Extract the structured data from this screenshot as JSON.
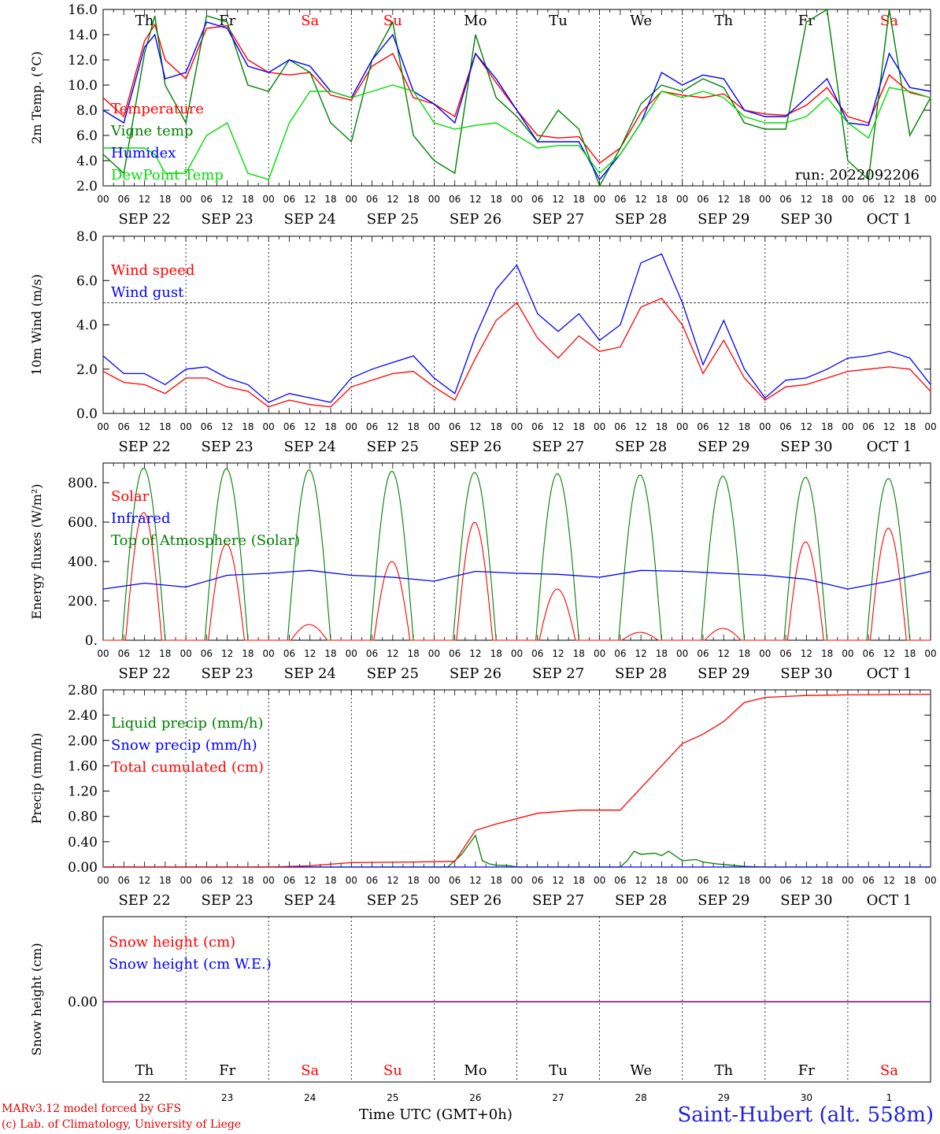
{
  "chart_data": [
    {
      "type": "line",
      "ylabel": "2m Temp. (°C)",
      "ylim": [
        2.0,
        16.0
      ],
      "yticks": [
        "2.0",
        "4.0",
        "6.0",
        "8.0",
        "10.0",
        "12.0",
        "14.0",
        "16.0"
      ],
      "annotation": "run: 2022092206",
      "x_hours": [
        0,
        6,
        12,
        15,
        18,
        24,
        30,
        36,
        42,
        48,
        54,
        60,
        66,
        72,
        78,
        84,
        90,
        96,
        102,
        108,
        114,
        120,
        126,
        132,
        138,
        144,
        150,
        156,
        162,
        168,
        174,
        180,
        186,
        192,
        198,
        204,
        210,
        216,
        222,
        228,
        234,
        240
      ],
      "series": [
        {
          "name": "Temperature",
          "color": "#ff0000",
          "values": [
            9.0,
            7.5,
            13.5,
            14.8,
            12.0,
            10.5,
            14.5,
            14.7,
            12.0,
            11.0,
            10.8,
            11.0,
            9.2,
            8.8,
            11.5,
            12.5,
            9.0,
            8.5,
            7.5,
            12.5,
            10.2,
            8.0,
            6.0,
            5.8,
            5.9,
            3.8,
            5.0,
            7.8,
            9.5,
            9.2,
            9.0,
            9.3,
            8.0,
            7.7,
            7.6,
            8.4,
            9.8,
            7.5,
            7.0,
            10.8,
            9.4,
            9.0
          ]
        },
        {
          "name": "Vigne temp",
          "color": "#008000",
          "values": [
            4.5,
            3.0,
            12.5,
            15.5,
            10.0,
            7.0,
            15.5,
            15.0,
            10.0,
            9.5,
            12.0,
            11.0,
            7.0,
            5.5,
            12.0,
            15.0,
            6.0,
            4.0,
            3.0,
            14.0,
            9.0,
            7.5,
            5.5,
            8.0,
            6.5,
            2.0,
            5.0,
            8.5,
            10.0,
            9.5,
            10.5,
            9.8,
            7.0,
            6.5,
            6.5,
            15.0,
            16.0,
            4.0,
            2.5,
            16.0,
            6.0,
            9.0
          ]
        },
        {
          "name": "Humidex",
          "color": "#0000ff",
          "values": [
            8.0,
            7.0,
            13.0,
            14.0,
            10.5,
            11.0,
            15.0,
            14.5,
            11.5,
            11.0,
            12.0,
            11.5,
            9.5,
            9.0,
            12.0,
            14.0,
            9.5,
            8.5,
            7.0,
            12.5,
            10.5,
            8.0,
            5.5,
            5.5,
            5.5,
            2.5,
            4.5,
            7.0,
            11.0,
            10.0,
            10.8,
            10.5,
            8.0,
            7.5,
            7.5,
            9.0,
            10.5,
            7.0,
            6.8,
            12.5,
            9.8,
            9.5
          ]
        },
        {
          "name": "DewPoint Temp",
          "color": "#00dd00",
          "values": [
            5.0,
            5.0,
            5.0,
            4.5,
            3.0,
            3.0,
            6.0,
            7.0,
            3.0,
            2.5,
            7.0,
            9.5,
            9.5,
            9.0,
            9.5,
            10.0,
            9.5,
            7.0,
            6.5,
            6.8,
            7.0,
            6.0,
            5.0,
            5.2,
            5.2,
            3.0,
            4.5,
            7.0,
            9.5,
            9.0,
            9.5,
            9.0,
            7.5,
            7.0,
            7.0,
            7.5,
            9.0,
            7.0,
            5.8,
            9.8,
            9.5,
            9.0
          ]
        }
      ]
    },
    {
      "type": "line",
      "ylabel": "10m Wind (m/s)",
      "ylim": [
        0.0,
        8.0
      ],
      "yticks": [
        "0.0",
        "2.0",
        "4.0",
        "6.0",
        "8.0"
      ],
      "reference_line": 5.0,
      "x_hours": [
        0,
        6,
        12,
        18,
        24,
        30,
        36,
        42,
        48,
        54,
        60,
        66,
        72,
        78,
        84,
        90,
        96,
        102,
        108,
        114,
        120,
        126,
        132,
        138,
        144,
        150,
        156,
        162,
        168,
        174,
        180,
        186,
        192,
        198,
        204,
        210,
        216,
        222,
        228,
        234,
        240
      ],
      "series": [
        {
          "name": "Wind speed",
          "color": "#ff0000",
          "values": [
            1.9,
            1.4,
            1.3,
            0.9,
            1.6,
            1.6,
            1.2,
            1.0,
            0.3,
            0.6,
            0.4,
            0.3,
            1.2,
            1.5,
            1.8,
            1.9,
            1.2,
            0.6,
            2.5,
            4.2,
            5.0,
            3.4,
            2.5,
            3.5,
            2.8,
            3.0,
            4.8,
            5.2,
            4.0,
            1.8,
            3.3,
            1.6,
            0.6,
            1.2,
            1.3,
            1.6,
            1.9,
            2.0,
            2.1,
            2.0,
            1.0
          ]
        },
        {
          "name": "Wind gust",
          "color": "#0000ff",
          "values": [
            2.6,
            1.8,
            1.8,
            1.3,
            2.0,
            2.1,
            1.6,
            1.3,
            0.5,
            0.9,
            0.7,
            0.5,
            1.6,
            2.0,
            2.3,
            2.6,
            1.6,
            0.9,
            3.5,
            5.6,
            6.7,
            4.5,
            3.7,
            4.5,
            3.3,
            4.0,
            6.8,
            7.2,
            5.0,
            2.2,
            4.2,
            2.0,
            0.7,
            1.5,
            1.6,
            2.0,
            2.5,
            2.6,
            2.8,
            2.5,
            1.3
          ]
        }
      ]
    },
    {
      "type": "line",
      "ylabel": "Energy fluxes (W/m²)",
      "ylim": [
        0,
        900
      ],
      "yticks": [
        "0.",
        "200.",
        "400.",
        "600.",
        "800."
      ],
      "series": [
        {
          "name": "Solar",
          "color": "#ff0000",
          "daily_peaks": [
            650,
            490,
            80,
            400,
            600,
            260,
            40,
            60,
            500,
            570
          ]
        },
        {
          "name": "Infrared",
          "color": "#0000ff",
          "x_hours": [
            0,
            12,
            24,
            36,
            48,
            60,
            72,
            84,
            96,
            108,
            120,
            132,
            144,
            156,
            168,
            180,
            192,
            204,
            216,
            228,
            240
          ],
          "values": [
            260,
            290,
            270,
            330,
            340,
            355,
            330,
            320,
            300,
            350,
            340,
            335,
            320,
            355,
            350,
            340,
            330,
            310,
            260,
            300,
            350
          ]
        },
        {
          "name": "Top of Atmosphere (Solar)",
          "color": "#008000",
          "daily_peaks": [
            875,
            872,
            866,
            859,
            853,
            847,
            840,
            834,
            828,
            822
          ]
        }
      ]
    },
    {
      "type": "line",
      "ylabel": "Precip (mm/h)",
      "ylim": [
        0.0,
        2.8
      ],
      "yticks": [
        "0.00",
        "0.40",
        "0.80",
        "1.20",
        "1.60",
        "2.00",
        "2.40",
        "2.80"
      ],
      "series": [
        {
          "name": "Liquid precip (mm/h)",
          "color": "#008000",
          "x_hours": [
            0,
            100,
            104,
            108,
            110,
            112,
            114,
            118,
            120,
            130,
            138,
            150,
            152,
            154,
            156,
            160,
            162,
            164,
            168,
            172,
            174,
            178,
            180,
            186,
            192,
            240
          ],
          "values": [
            0,
            0,
            0.2,
            0.5,
            0.1,
            0.05,
            0.03,
            0.02,
            0,
            0,
            0,
            0,
            0.1,
            0.25,
            0.2,
            0.22,
            0.18,
            0.25,
            0.1,
            0.12,
            0.08,
            0.05,
            0.04,
            0.01,
            0,
            0
          ]
        },
        {
          "name": "Snow precip (mm/h)",
          "color": "#0000ff",
          "x_hours": [
            0,
            240
          ],
          "values": [
            0,
            0
          ]
        },
        {
          "name": "Total cumulated (cm)",
          "color": "#ff0000",
          "x_hours": [
            0,
            48,
            60,
            72,
            90,
            102,
            108,
            114,
            126,
            138,
            150,
            162,
            168,
            174,
            180,
            186,
            192,
            204,
            216,
            240
          ],
          "values": [
            0,
            0,
            0.02,
            0.07,
            0.08,
            0.09,
            0.58,
            0.68,
            0.85,
            0.9,
            0.9,
            1.6,
            1.95,
            2.1,
            2.3,
            2.6,
            2.68,
            2.71,
            2.72,
            2.73
          ]
        }
      ]
    },
    {
      "type": "line",
      "ylabel": "Snow height (cm)",
      "yticks": [
        "0.00"
      ],
      "series": [
        {
          "name": "Snow height (cm)",
          "color": "#ff0000",
          "values": [
            0,
            0
          ]
        },
        {
          "name": "Snow height (cm W.E.)",
          "color": "#0000ff",
          "values": [
            0,
            0
          ]
        }
      ]
    }
  ],
  "x_axis": {
    "hour_labels": [
      "00",
      "06",
      "12",
      "18"
    ],
    "dates": [
      "SEP 22",
      "SEP 23",
      "SEP 24",
      "SEP 25",
      "SEP 26",
      "SEP 27",
      "SEP 28",
      "SEP 29",
      "SEP 30",
      "OCT  1"
    ],
    "days": [
      "Th",
      "Fr",
      "Sa",
      "Su",
      "Mo",
      "Tu",
      "We",
      "Th",
      "Fr",
      "Sa"
    ],
    "day_colors": [
      "#000000",
      "#000000",
      "#ff0000",
      "#ff0000",
      "#000000",
      "#000000",
      "#000000",
      "#000000",
      "#000000",
      "#ff0000"
    ],
    "day_numbers": [
      "22",
      "23",
      "24",
      "25",
      "26",
      "27",
      "28",
      "29",
      "30",
      "1"
    ],
    "last_label": "00"
  },
  "footer": {
    "model_line": "MARv3.12 model forced by GFS",
    "credit_line": "(c) Lab. of Climatology, University of Liege",
    "xlabel": "Time UTC (GMT+0h)",
    "station": "Saint-Hubert (alt. 558m)"
  }
}
